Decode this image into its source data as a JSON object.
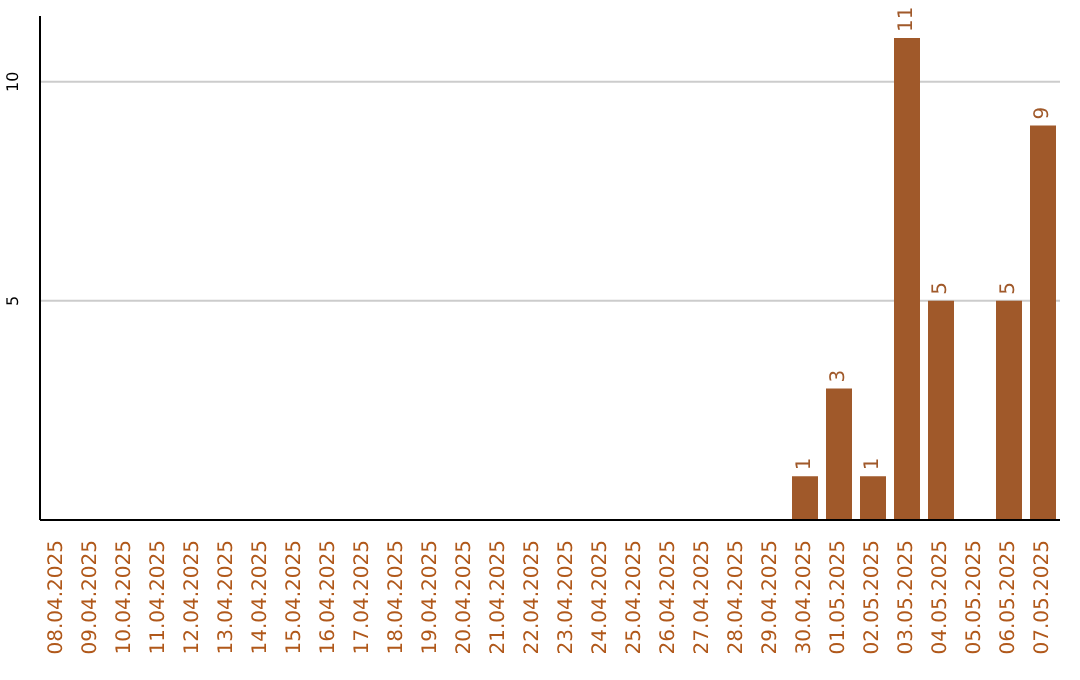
{
  "chart_data": {
    "type": "bar",
    "categories": [
      "08.04.2025",
      "09.04.2025",
      "10.04.2025",
      "11.04.2025",
      "12.04.2025",
      "13.04.2025",
      "14.04.2025",
      "15.04.2025",
      "16.04.2025",
      "17.04.2025",
      "18.04.2025",
      "19.04.2025",
      "20.04.2025",
      "21.04.2025",
      "22.04.2025",
      "23.04.2025",
      "24.04.2025",
      "25.04.2025",
      "26.04.2025",
      "27.04.2025",
      "28.04.2025",
      "29.04.2025",
      "30.04.2025",
      "01.05.2025",
      "02.05.2025",
      "03.05.2025",
      "04.05.2025",
      "05.05.2025",
      "06.05.2025",
      "07.05.2025"
    ],
    "values": [
      0,
      0,
      0,
      0,
      0,
      0,
      0,
      0,
      0,
      0,
      0,
      0,
      0,
      0,
      0,
      0,
      0,
      0,
      0,
      0,
      0,
      0,
      1,
      3,
      1,
      11,
      5,
      0,
      5,
      9
    ],
    "value_labels": [
      null,
      null,
      null,
      null,
      null,
      null,
      null,
      null,
      null,
      null,
      null,
      null,
      null,
      null,
      null,
      null,
      null,
      null,
      null,
      null,
      null,
      null,
      "1",
      "3",
      "1",
      "11",
      "5",
      null,
      "5",
      "9"
    ],
    "color": "#a0592a",
    "ylim": [
      0,
      11.5
    ],
    "yticks": [
      5,
      10
    ],
    "grid": "y"
  }
}
